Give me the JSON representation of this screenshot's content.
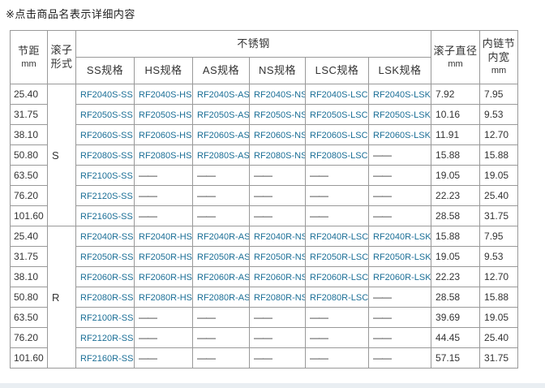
{
  "page": {
    "note": "※点击商品名表示详细内容"
  },
  "colors": {
    "link": "#1a6e96",
    "border": "#999999",
    "text": "#333333",
    "footer_bar": "#e9eef2"
  },
  "table": {
    "headers": {
      "pitch": "节距",
      "pitch_unit": "mm",
      "roller_form": "滚子形式",
      "stainless": "不锈钢",
      "spec_columns": [
        "SS规格",
        "HS规格",
        "AS规格",
        "NS规格",
        "LSC规格",
        "LSK规格"
      ],
      "roller_diameter": "滚子直径",
      "roller_diameter_unit": "mm",
      "inner_width": "内链节内宽",
      "inner_width_unit": "mm"
    },
    "dash": "——",
    "groups": [
      {
        "form": "S",
        "rows": [
          {
            "pitch": "25.40",
            "models": [
              "RF2040S-SS",
              "RF2040S-HS",
              "RF2040S-AS",
              "RF2040S-NS",
              "RF2040S-LSC",
              "RF2040S-LSK"
            ],
            "roller_diameter": "7.92",
            "inner_width": "7.95"
          },
          {
            "pitch": "31.75",
            "models": [
              "RF2050S-SS",
              "RF2050S-HS",
              "RF2050S-AS",
              "RF2050S-NS",
              "RF2050S-LSC",
              "RF2050S-LSK"
            ],
            "roller_diameter": "10.16",
            "inner_width": "9.53"
          },
          {
            "pitch": "38.10",
            "models": [
              "RF2060S-SS",
              "RF2060S-HS",
              "RF2060S-AS",
              "RF2060S-NS",
              "RF2060S-LSC",
              "RF2060S-LSK"
            ],
            "roller_diameter": "11.91",
            "inner_width": "12.70"
          },
          {
            "pitch": "50.80",
            "models": [
              "RF2080S-SS",
              "RF2080S-HS",
              "RF2080S-AS",
              "RF2080S-NS",
              "RF2080S-LSC",
              null
            ],
            "roller_diameter": "15.88",
            "inner_width": "15.88"
          },
          {
            "pitch": "63.50",
            "models": [
              "RF2100S-SS",
              null,
              null,
              null,
              null,
              null
            ],
            "roller_diameter": "19.05",
            "inner_width": "19.05"
          },
          {
            "pitch": "76.20",
            "models": [
              "RF2120S-SS",
              null,
              null,
              null,
              null,
              null
            ],
            "roller_diameter": "22.23",
            "inner_width": "25.40"
          },
          {
            "pitch": "101.60",
            "models": [
              "RF2160S-SS",
              null,
              null,
              null,
              null,
              null
            ],
            "roller_diameter": "28.58",
            "inner_width": "31.75"
          }
        ]
      },
      {
        "form": "R",
        "rows": [
          {
            "pitch": "25.40",
            "models": [
              "RF2040R-SS",
              "RF2040R-HS",
              "RF2040R-AS",
              "RF2040R-NS",
              "RF2040R-LSC",
              "RF2040R-LSK"
            ],
            "roller_diameter": "15.88",
            "inner_width": "7.95"
          },
          {
            "pitch": "31.75",
            "models": [
              "RF2050R-SS",
              "RF2050R-HS",
              "RF2050R-AS",
              "RF2050R-NS",
              "RF2050R-LSC",
              "RF2050R-LSK"
            ],
            "roller_diameter": "19.05",
            "inner_width": "9.53"
          },
          {
            "pitch": "38.10",
            "models": [
              "RF2060R-SS",
              "RF2060R-HS",
              "RF2060R-AS",
              "RF2060R-NS",
              "RF2060R-LSC",
              "RF2060R-LSK"
            ],
            "roller_diameter": "22.23",
            "inner_width": "12.70"
          },
          {
            "pitch": "50.80",
            "models": [
              "RF2080R-SS",
              "RF2080R-HS",
              "RF2080R-AS",
              "RF2080R-NS",
              "RF2080R-LSC",
              null
            ],
            "roller_diameter": "28.58",
            "inner_width": "15.88"
          },
          {
            "pitch": "63.50",
            "models": [
              "RF2100R-SS",
              null,
              null,
              null,
              null,
              null
            ],
            "roller_diameter": "39.69",
            "inner_width": "19.05"
          },
          {
            "pitch": "76.20",
            "models": [
              "RF2120R-SS",
              null,
              null,
              null,
              null,
              null
            ],
            "roller_diameter": "44.45",
            "inner_width": "25.40"
          },
          {
            "pitch": "101.60",
            "models": [
              "RF2160R-SS",
              null,
              null,
              null,
              null,
              null
            ],
            "roller_diameter": "57.15",
            "inner_width": "31.75"
          }
        ]
      }
    ]
  }
}
